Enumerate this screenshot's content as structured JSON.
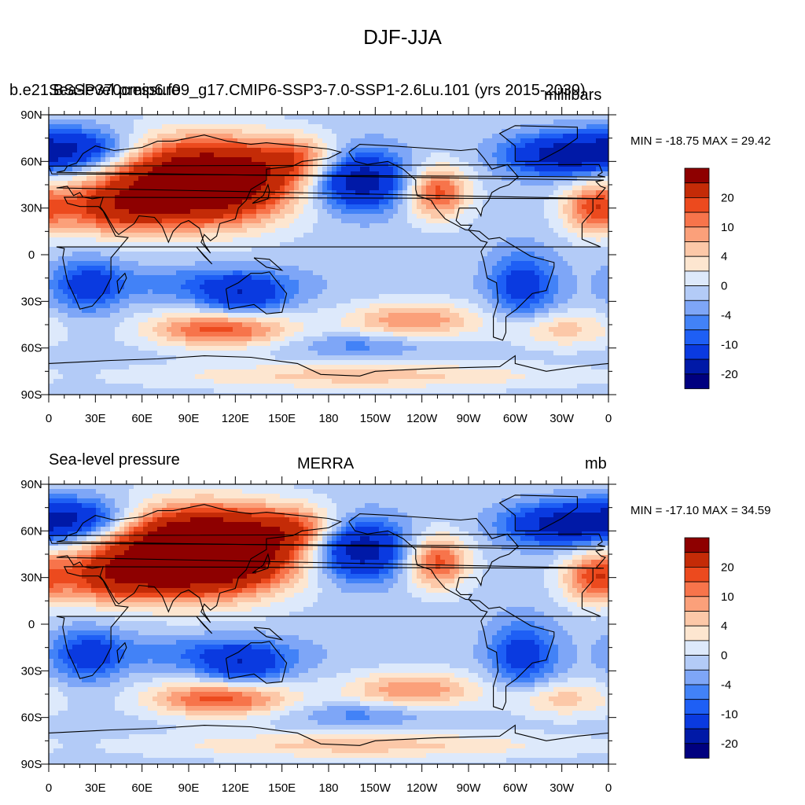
{
  "figure": {
    "title": "DJF-JJA"
  },
  "colors": [
    "#00007f",
    "#0019a7",
    "#0a3ae0",
    "#1e5ff5",
    "#4282f7",
    "#7ea6f7",
    "#b3cbf7",
    "#dde9fb",
    "#fde6d0",
    "#fcc8a8",
    "#fba07a",
    "#f7744b",
    "#ec4a1e",
    "#c42b07",
    "#8e0000"
  ],
  "colorbar": {
    "levels": [
      "20",
      "10",
      "4",
      "0",
      "-4",
      "-10",
      "-20"
    ]
  },
  "panels": [
    {
      "left_label": "b.e21.BSSP370cmip6.f09_g17.CMIP6-SSP3-7.0-SSP1-2.6Lu.101 (yrs 2015-2039)",
      "overlap_label": "Sea-level pressure",
      "center_label": "",
      "right_label": "millibars",
      "minmax": "MIN = -18.75 MAX =  29.42"
    },
    {
      "left_label": "Sea-level pressure",
      "center_label": "MERRA",
      "right_label": "mb",
      "minmax": "MIN = -17.10 MAX =  34.59"
    }
  ],
  "chart_data": [
    {
      "type": "heatmap",
      "title": "",
      "variable": "Sea-level pressure",
      "units": "millibars",
      "x_ticks": [
        "0",
        "30E",
        "60E",
        "90E",
        "120E",
        "150E",
        "180",
        "150W",
        "120W",
        "90W",
        "60W",
        "30W",
        "0"
      ],
      "y_ticks": [
        "90N",
        "60N",
        "30N",
        "0",
        "30S",
        "60S",
        "90S"
      ],
      "xlim": [
        0,
        360
      ],
      "ylim": [
        -90,
        90
      ],
      "min": -18.75,
      "max": 29.42,
      "contour_levels": [
        -20,
        -15,
        -10,
        -8,
        -6,
        -4,
        -2,
        0,
        2,
        4,
        6,
        8,
        10,
        15,
        20
      ]
    },
    {
      "type": "heatmap",
      "title": "MERRA",
      "variable": "Sea-level pressure",
      "units": "mb",
      "x_ticks": [
        "0",
        "30E",
        "60E",
        "90E",
        "120E",
        "150E",
        "180",
        "150W",
        "120W",
        "90W",
        "60W",
        "30W",
        "0"
      ],
      "y_ticks": [
        "90N",
        "60N",
        "30N",
        "0",
        "30S",
        "60S",
        "90S"
      ],
      "xlim": [
        0,
        360
      ],
      "ylim": [
        -90,
        90
      ],
      "min": -17.1,
      "max": 34.59,
      "contour_levels": [
        -20,
        -15,
        -10,
        -8,
        -6,
        -4,
        -2,
        0,
        2,
        4,
        6,
        8,
        10,
        15,
        20
      ]
    }
  ]
}
